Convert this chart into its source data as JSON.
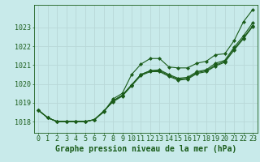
{
  "xlabel": "Graphe pression niveau de la mer (hPa)",
  "background_color": "#c8eaea",
  "grid_color": "#b8d8d8",
  "line_color": "#1a5c1a",
  "xlim": [
    -0.5,
    23.5
  ],
  "ylim": [
    1017.4,
    1024.2
  ],
  "yticks": [
    1018,
    1019,
    1020,
    1021,
    1022,
    1023
  ],
  "xticks": [
    0,
    1,
    2,
    3,
    4,
    5,
    6,
    7,
    8,
    9,
    10,
    11,
    12,
    13,
    14,
    15,
    16,
    17,
    18,
    19,
    20,
    21,
    22,
    23
  ],
  "series": [
    [
      1018.6,
      1018.2,
      1018.0,
      1018.0,
      1018.0,
      1018.0,
      1018.1,
      1018.5,
      1019.2,
      1019.5,
      1020.5,
      1021.05,
      1021.35,
      1021.35,
      1020.9,
      1020.85,
      1020.85,
      1021.1,
      1021.2,
      1021.55,
      1021.6,
      1022.3,
      1023.3,
      1023.95
    ],
    [
      1018.6,
      1018.2,
      1018.0,
      1018.0,
      1018.0,
      1018.0,
      1018.1,
      1018.55,
      1019.1,
      1019.4,
      1019.95,
      1020.5,
      1020.7,
      1020.75,
      1020.5,
      1020.3,
      1020.35,
      1020.65,
      1020.75,
      1021.1,
      1021.25,
      1021.95,
      1022.55,
      1023.25
    ],
    [
      1018.6,
      1018.2,
      1018.0,
      1018.0,
      1018.0,
      1018.0,
      1018.1,
      1018.55,
      1019.1,
      1019.4,
      1019.95,
      1020.5,
      1020.7,
      1020.7,
      1020.45,
      1020.25,
      1020.3,
      1020.6,
      1020.7,
      1021.0,
      1021.2,
      1021.85,
      1022.45,
      1023.1
    ],
    [
      1018.6,
      1018.2,
      1018.0,
      1018.0,
      1018.0,
      1018.0,
      1018.1,
      1018.55,
      1019.05,
      1019.35,
      1019.9,
      1020.45,
      1020.65,
      1020.65,
      1020.4,
      1020.2,
      1020.25,
      1020.55,
      1020.65,
      1020.95,
      1021.15,
      1021.8,
      1022.4,
      1023.05
    ]
  ],
  "marker": "D",
  "markersize": 2.0,
  "linewidth": 0.8,
  "xlabel_fontsize": 7,
  "xlabel_fontweight": "bold",
  "tick_fontsize": 6
}
